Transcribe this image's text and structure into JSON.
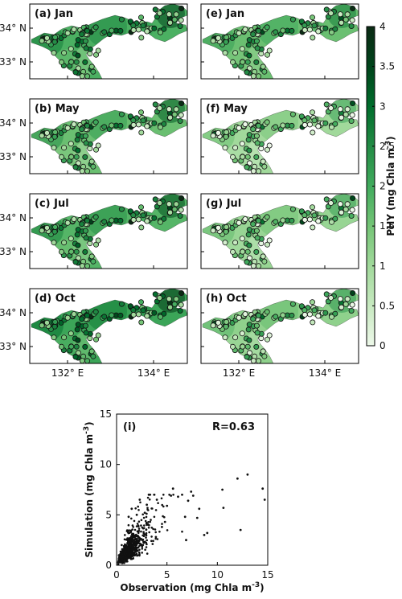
{
  "colors": {
    "land": "#ffffff",
    "colormap": [
      "#edf8e9",
      "#c7e9c0",
      "#a1d99b",
      "#74c476",
      "#41ab5d",
      "#238b45",
      "#006d2c",
      "#00441b",
      "#0b2a14"
    ],
    "scatter_point": "#111111"
  },
  "chart_data": [
    {
      "type": "heatmap",
      "kind": "map-panels",
      "panels": [
        {
          "id": "a",
          "title": "(a) Jan",
          "level": 1.9
        },
        {
          "id": "b",
          "title": "(b) May",
          "level": 1.6
        },
        {
          "id": "c",
          "title": "(c) Jul",
          "level": 1.8
        },
        {
          "id": "d",
          "title": "(d) Oct",
          "level": 2.1
        },
        {
          "id": "e",
          "title": "(e) Jan",
          "level": 1.6
        },
        {
          "id": "f",
          "title": "(f) May",
          "level": 1.0
        },
        {
          "id": "g",
          "title": "(g) Jul",
          "level": 1.1
        },
        {
          "id": "h",
          "title": "(h) Oct",
          "level": 1.2
        }
      ],
      "lat_ticks": [
        "34° N",
        "33° N"
      ],
      "lon_ticks": [
        "132° E",
        "134° E"
      ],
      "colorbar": {
        "label": "PHY (mg Chla m",
        "label_sup": "-3",
        "label_end": ")",
        "min": 0,
        "max": 4,
        "ticks": [
          "0",
          "0.5",
          "1",
          "1.5",
          "2",
          "2.5",
          "3",
          "3.5",
          "4"
        ]
      }
    },
    {
      "type": "scatter",
      "title": "(i)",
      "annotation": "R=0.63",
      "xlabel": "Observation (mg Chla m",
      "ylabel": "Simulation (mg Chla m",
      "label_sup": "-3",
      "label_end": ")",
      "xlim": [
        0,
        15
      ],
      "ylim": [
        0,
        15
      ],
      "xticks": [
        0,
        5,
        10,
        15
      ],
      "yticks": [
        0,
        5,
        10,
        15
      ],
      "points": [
        [
          14.5,
          7.6
        ],
        [
          14.7,
          6.5
        ],
        [
          12.3,
          3.5
        ],
        [
          13.0,
          9.0
        ],
        [
          12.0,
          8.6
        ],
        [
          10.5,
          7.5
        ],
        [
          10.6,
          5.7
        ],
        [
          8.2,
          5.6
        ],
        [
          8.0,
          4.7
        ],
        [
          7.6,
          6.9
        ],
        [
          7.4,
          7.3
        ],
        [
          7.1,
          6.4
        ],
        [
          6.9,
          2.5
        ],
        [
          6.8,
          4.8
        ],
        [
          6.1,
          6.8
        ],
        [
          5.6,
          7.6
        ],
        [
          5.4,
          6.9
        ],
        [
          5.0,
          5.9
        ],
        [
          4.8,
          4.3
        ],
        [
          4.5,
          3.8
        ],
        [
          4.0,
          6.5
        ],
        [
          3.9,
          2.8
        ],
        [
          3.2,
          7.0
        ],
        [
          3.0,
          6.0
        ],
        [
          2.8,
          5.2
        ],
        [
          2.3,
          6.5
        ],
        [
          2.0,
          5.0
        ],
        [
          1.5,
          5.6
        ],
        [
          1.2,
          4.8
        ],
        [
          9.0,
          3.2
        ],
        [
          8.7,
          3.0
        ]
      ],
      "cluster": {
        "mean_x": 1.1,
        "mean_y": 1.4,
        "count": 850
      }
    }
  ]
}
